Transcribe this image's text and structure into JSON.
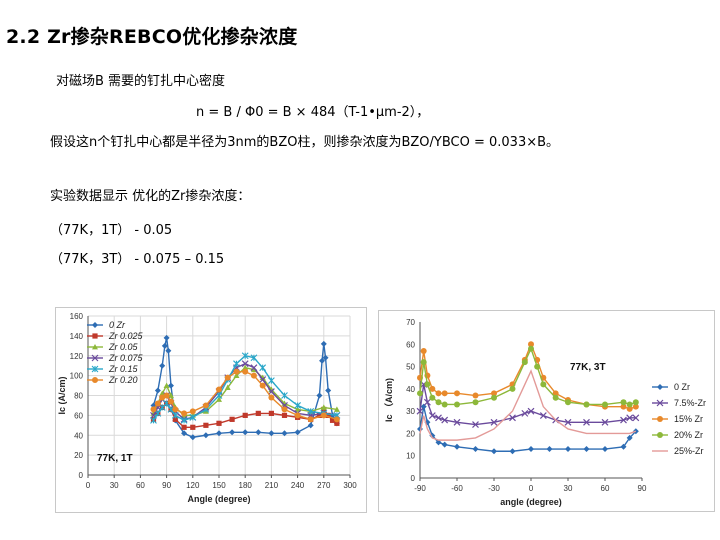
{
  "slide": {
    "title": "2.2 Zr掺杂REBCO优化掺杂浓度",
    "line1": "对磁场B 需要的钉扎中心密度",
    "line2": "n = B / Φ0 = B × 484（T-1•μm-2），",
    "line3": "假设这n个钉扎中心都是半径为3nm的BZO柱，则掺杂浓度为BZO/YBCO = 0.033×B。",
    "line4": "实验数据显示 优化的Zr掺杂浓度：",
    "line5": "（77K，1T）  - 0.05",
    "line6": "（77K，3T）  - 0.075 – 0.15"
  },
  "colors": {
    "blue": "#2e6db4",
    "red": "#c0392b",
    "green": "#8db83a",
    "purple": "#6a4a9c",
    "cyan": "#2aa7c9",
    "orange": "#e8892b",
    "pink": "#e39a98"
  },
  "chart_data": [
    {
      "type": "line",
      "annotation": "77K, 1T",
      "xlabel": "Angle (degree)",
      "ylabel": "Ic (A/cm)",
      "xlim": [
        0,
        300
      ],
      "ylim": [
        0,
        160
      ],
      "xticks": [
        "0",
        "30",
        "60",
        "90",
        "120",
        "150",
        "180",
        "210",
        "240",
        "270",
        "300"
      ],
      "yticks": [
        "0",
        "20",
        "40",
        "60",
        "80",
        "100",
        "120",
        "140",
        "160"
      ],
      "grid": true,
      "legend": "top-left",
      "series": [
        {
          "name": "0 Zr",
          "color": "blue",
          "marker": "diamond",
          "x": [
            75,
            80,
            85,
            88,
            90,
            92,
            95,
            100,
            110,
            120,
            135,
            150,
            165,
            180,
            195,
            210,
            225,
            240,
            255,
            265,
            268,
            270,
            272,
            275,
            280,
            285
          ],
          "y": [
            70,
            85,
            110,
            130,
            138,
            125,
            90,
            55,
            42,
            38,
            40,
            42,
            43,
            43,
            43,
            42,
            42,
            43,
            50,
            80,
            115,
            132,
            118,
            85,
            60,
            52
          ]
        },
        {
          "name": "Zr 0.025",
          "color": "red",
          "marker": "square",
          "x": [
            75,
            80,
            85,
            90,
            95,
            100,
            110,
            120,
            135,
            150,
            165,
            180,
            195,
            210,
            225,
            240,
            255,
            265,
            270,
            275,
            280,
            285
          ],
          "y": [
            56,
            62,
            68,
            72,
            66,
            56,
            48,
            48,
            50,
            52,
            56,
            60,
            62,
            62,
            60,
            58,
            56,
            60,
            66,
            60,
            55,
            52
          ]
        },
        {
          "name": "Zr 0.05",
          "color": "green",
          "marker": "triangle",
          "x": [
            75,
            80,
            85,
            90,
            95,
            100,
            110,
            120,
            135,
            150,
            160,
            170,
            180,
            190,
            200,
            210,
            225,
            240,
            255,
            270,
            285
          ],
          "y": [
            62,
            72,
            82,
            90,
            80,
            68,
            60,
            60,
            64,
            76,
            88,
            100,
            108,
            106,
            98,
            86,
            72,
            66,
            64,
            68,
            66
          ]
        },
        {
          "name": "Zr 0.075",
          "color": "purple",
          "marker": "x",
          "x": [
            75,
            80,
            85,
            90,
            95,
            100,
            110,
            120,
            135,
            150,
            160,
            170,
            180,
            190,
            200,
            210,
            225,
            240,
            255,
            270,
            285
          ],
          "y": [
            60,
            68,
            76,
            80,
            72,
            64,
            56,
            58,
            68,
            84,
            98,
            108,
            112,
            108,
            96,
            84,
            70,
            62,
            60,
            62,
            60
          ]
        },
        {
          "name": "Zr 0.15",
          "color": "cyan",
          "marker": "star",
          "x": [
            75,
            80,
            85,
            90,
            95,
            100,
            110,
            120,
            135,
            150,
            160,
            170,
            180,
            190,
            200,
            210,
            225,
            240,
            255,
            270,
            285
          ],
          "y": [
            55,
            62,
            68,
            72,
            66,
            60,
            55,
            58,
            66,
            80,
            96,
            112,
            120,
            118,
            108,
            95,
            80,
            70,
            64,
            62,
            60
          ]
        },
        {
          "name": "Zr 0.20",
          "color": "orange",
          "marker": "circle",
          "x": [
            75,
            80,
            85,
            90,
            95,
            100,
            110,
            120,
            135,
            150,
            160,
            170,
            180,
            190,
            200,
            210,
            225,
            240,
            255,
            270,
            285
          ],
          "y": [
            66,
            72,
            78,
            80,
            74,
            66,
            62,
            64,
            70,
            86,
            98,
            104,
            104,
            100,
            90,
            78,
            66,
            60,
            56,
            60,
            56
          ]
        }
      ]
    },
    {
      "type": "line",
      "annotation": "77K, 3T",
      "xlabel": "angle (degree)",
      "ylabel": "Ic （A/cm)",
      "xlim": [
        -90,
        90
      ],
      "ylim": [
        0,
        70
      ],
      "xticks": [
        "-90",
        "-60",
        "-30",
        "0",
        "30",
        "60",
        "90"
      ],
      "yticks": [
        "0",
        "10",
        "20",
        "30",
        "40",
        "50",
        "60",
        "70"
      ],
      "grid": false,
      "legend": "right",
      "series": [
        {
          "name": "0 Zr",
          "color": "blue",
          "marker": "diamond",
          "x": [
            -90,
            -87,
            -84,
            -80,
            -75,
            -70,
            -60,
            -45,
            -30,
            -15,
            0,
            15,
            30,
            45,
            60,
            75,
            80,
            85
          ],
          "y": [
            22,
            32,
            25,
            19,
            16,
            15,
            14,
            13,
            12,
            12,
            13,
            13,
            13,
            13,
            13,
            14,
            18,
            21
          ]
        },
        {
          "name": "7.5%-Zr",
          "color": "purple",
          "marker": "x",
          "x": [
            -90,
            -87,
            -84,
            -80,
            -75,
            -70,
            -60,
            -45,
            -30,
            -15,
            -5,
            0,
            10,
            20,
            30,
            45,
            60,
            75,
            80,
            85
          ],
          "y": [
            30,
            42,
            34,
            28,
            27,
            26,
            25,
            24,
            25,
            27,
            29,
            30,
            28,
            26,
            25,
            25,
            25,
            26,
            27,
            27
          ]
        },
        {
          "name": "15% Zr",
          "color": "orange",
          "marker": "circle",
          "x": [
            -90,
            -87,
            -84,
            -80,
            -75,
            -70,
            -60,
            -45,
            -30,
            -15,
            -5,
            0,
            5,
            10,
            20,
            30,
            45,
            60,
            75,
            80,
            85
          ],
          "y": [
            45,
            57,
            46,
            40,
            38,
            38,
            38,
            37,
            38,
            42,
            53,
            60,
            53,
            45,
            38,
            35,
            33,
            32,
            32,
            31,
            32
          ]
        },
        {
          "name": "20% Zr",
          "color": "green",
          "marker": "circle",
          "x": [
            -90,
            -87,
            -84,
            -80,
            -75,
            -70,
            -60,
            -45,
            -30,
            -15,
            -5,
            0,
            5,
            10,
            20,
            30,
            45,
            60,
            75,
            80,
            85
          ],
          "y": [
            38,
            52,
            42,
            36,
            34,
            33,
            33,
            34,
            36,
            40,
            52,
            58,
            50,
            42,
            36,
            34,
            33,
            33,
            34,
            33,
            34
          ]
        },
        {
          "name": "25%-Zr",
          "color": "pink",
          "marker": "none",
          "x": [
            -90,
            -87,
            -84,
            -80,
            -75,
            -70,
            -60,
            -45,
            -30,
            -15,
            -5,
            0,
            5,
            10,
            20,
            30,
            45,
            60,
            75,
            80,
            85
          ],
          "y": [
            20,
            28,
            22,
            18,
            17,
            17,
            17,
            18,
            22,
            30,
            42,
            48,
            40,
            32,
            26,
            22,
            20,
            20,
            20,
            20,
            21
          ]
        }
      ]
    }
  ]
}
